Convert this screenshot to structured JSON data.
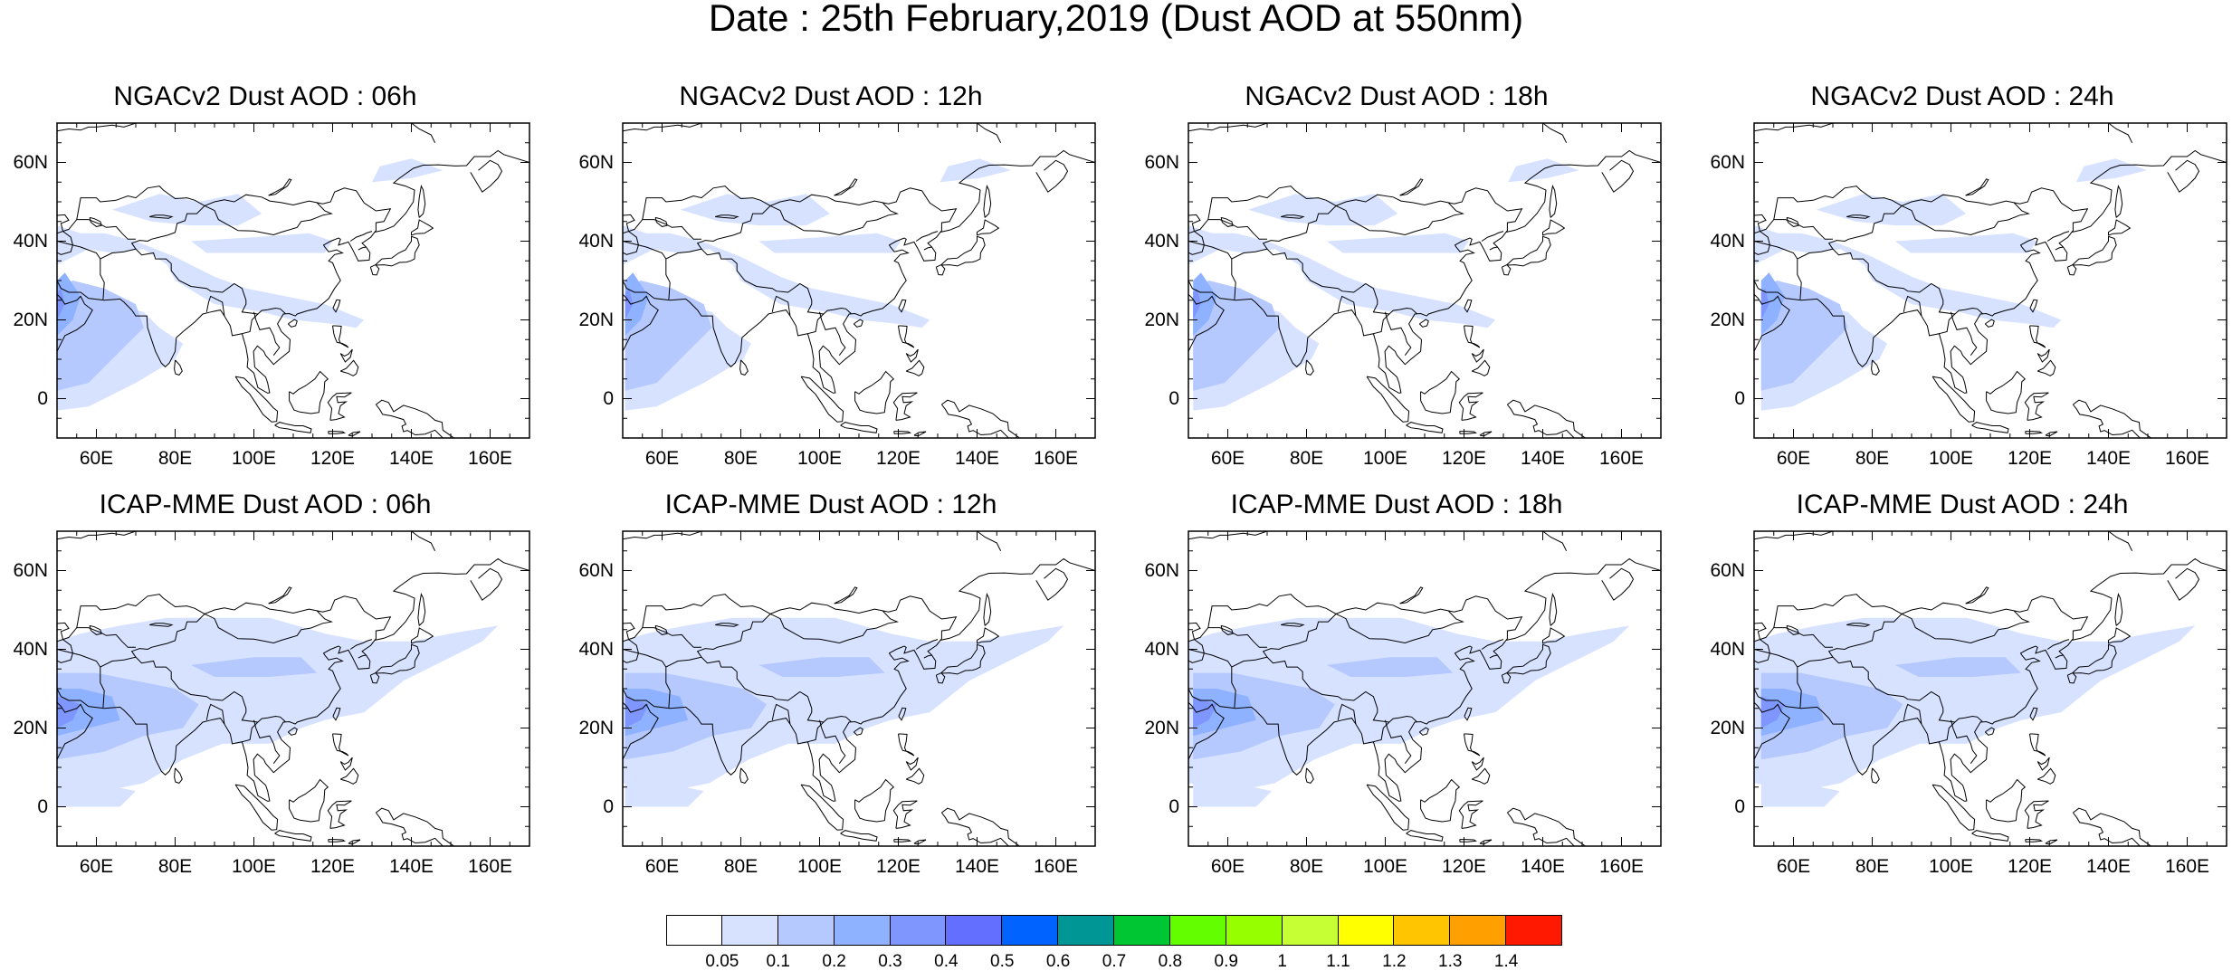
{
  "figure": {
    "title": "Date : 25th February,2019 (Dust AOD at 550nm)"
  },
  "map_extent": {
    "lon": [
      50,
      170
    ],
    "lat": [
      -10,
      70
    ]
  },
  "axis_ticks": {
    "x_labels": [
      "60E",
      "80E",
      "100E",
      "120E",
      "140E",
      "160E"
    ],
    "y_labels": [
      "60N",
      "40N",
      "20N",
      "0"
    ]
  },
  "panels": [
    {
      "title": "NGACv2 Dust AOD : 06h",
      "model": "NGACv2",
      "lead": "06h"
    },
    {
      "title": "NGACv2 Dust AOD : 12h",
      "model": "NGACv2",
      "lead": "12h"
    },
    {
      "title": "NGACv2 Dust AOD : 18h",
      "model": "NGACv2",
      "lead": "18h"
    },
    {
      "title": "NGACv2 Dust AOD : 24h",
      "model": "NGACv2",
      "lead": "24h"
    },
    {
      "title": "ICAP-MME Dust AOD : 06h",
      "model": "ICAP-MME",
      "lead": "06h"
    },
    {
      "title": "ICAP-MME Dust AOD : 12h",
      "model": "ICAP-MME",
      "lead": "12h"
    },
    {
      "title": "ICAP-MME Dust AOD : 18h",
      "model": "ICAP-MME",
      "lead": "18h"
    },
    {
      "title": "ICAP-MME Dust AOD : 24h",
      "model": "ICAP-MME",
      "lead": "24h"
    }
  ],
  "colorbar": {
    "labels": [
      "0.05",
      "0.1",
      "0.2",
      "0.3",
      "0.4",
      "0.5",
      "0.6",
      "0.7",
      "0.8",
      "0.9",
      "1",
      "1.1",
      "1.2",
      "1.3",
      "1.4"
    ],
    "colors": [
      "#ffffff",
      "#d6e2ff",
      "#b5c9ff",
      "#8eb2ff",
      "#7f96ff",
      "#6370ff",
      "#0063ff",
      "#009696",
      "#00c633",
      "#63ff00",
      "#96ff00",
      "#c6ff33",
      "#ffff00",
      "#ffc600",
      "#ffa000",
      "#ff7c00",
      "#ff1900"
    ]
  },
  "colors": {
    "land_outline": "#000000",
    "frame": "#000000",
    "background": "#ffffff"
  }
}
